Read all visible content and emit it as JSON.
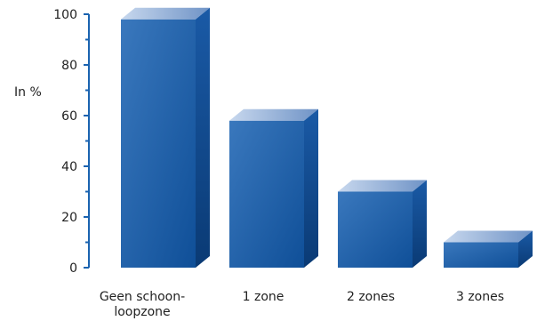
{
  "chart_data": {
    "type": "bar",
    "ylabel": "In %",
    "categories": [
      "Geen schoon-\nloopzone",
      "1 zone",
      "2 zones",
      "3 zones"
    ],
    "values": [
      98,
      58,
      30,
      10
    ],
    "ylim": [
      0,
      100
    ],
    "yticks": [
      0,
      20,
      40,
      60,
      80,
      100
    ],
    "grid": false,
    "colors": {
      "bar_front_top": "#3a78bd",
      "bar_front_bottom": "#0f4f98",
      "bar_top_face": "#9bb6dc",
      "bar_side_face": "#0b3f7d",
      "axis": "#1a63b0"
    }
  }
}
